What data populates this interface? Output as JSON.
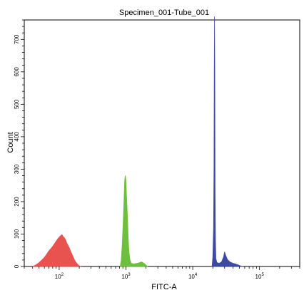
{
  "chart_data": {
    "type": "histogram",
    "title": "Specimen_001-Tube_001",
    "xlabel": "FITC-A",
    "ylabel": "Count",
    "x_scale": "log",
    "xlim": [
      30,
      400000
    ],
    "ylim": [
      0,
      760
    ],
    "x_ticks": [
      {
        "value": 100,
        "base": "10",
        "exp": "2"
      },
      {
        "value": 1000,
        "base": "10",
        "exp": "3"
      },
      {
        "value": 10000,
        "base": "10",
        "exp": "4"
      },
      {
        "value": 100000,
        "base": "10",
        "exp": "5"
      }
    ],
    "y_ticks": [
      {
        "value": 0,
        "label": "0"
      },
      {
        "value": 100,
        "label": "100"
      },
      {
        "value": 200,
        "label": "200"
      },
      {
        "value": 300,
        "label": "300"
      },
      {
        "value": 400,
        "label": "400"
      },
      {
        "value": 500,
        "label": "500"
      },
      {
        "value": 600,
        "label": "600"
      },
      {
        "value": 700,
        "label": "700"
      }
    ],
    "series": [
      {
        "color": "#e8534f",
        "points": [
          [
            40,
            0
          ],
          [
            45,
            5
          ],
          [
            50,
            12
          ],
          [
            55,
            20
          ],
          [
            60,
            28
          ],
          [
            65,
            38
          ],
          [
            70,
            48
          ],
          [
            75,
            55
          ],
          [
            80,
            62
          ],
          [
            85,
            70
          ],
          [
            90,
            78
          ],
          [
            95,
            85
          ],
          [
            100,
            90
          ],
          [
            105,
            95
          ],
          [
            110,
            98
          ],
          [
            115,
            92
          ],
          [
            120,
            88
          ],
          [
            125,
            82
          ],
          [
            130,
            72
          ],
          [
            140,
            60
          ],
          [
            150,
            45
          ],
          [
            160,
            32
          ],
          [
            170,
            20
          ],
          [
            180,
            12
          ],
          [
            190,
            6
          ],
          [
            200,
            2
          ],
          [
            210,
            0
          ]
        ]
      },
      {
        "color": "#6fbf3f",
        "points": [
          [
            820,
            0
          ],
          [
            850,
            20
          ],
          [
            880,
            70
          ],
          [
            910,
            140
          ],
          [
            940,
            220
          ],
          [
            960,
            270
          ],
          [
            980,
            280
          ],
          [
            1000,
            265
          ],
          [
            1020,
            220
          ],
          [
            1050,
            160
          ],
          [
            1080,
            90
          ],
          [
            1110,
            45
          ],
          [
            1150,
            20
          ],
          [
            1200,
            10
          ],
          [
            1300,
            8
          ],
          [
            1500,
            10
          ],
          [
            1700,
            14
          ],
          [
            1800,
            12
          ],
          [
            1900,
            8
          ],
          [
            2000,
            4
          ],
          [
            2100,
            0
          ]
        ]
      },
      {
        "color": "#3c4aa2",
        "points": [
          [
            19500,
            0
          ],
          [
            20000,
            30
          ],
          [
            20500,
            120
          ],
          [
            20800,
            300
          ],
          [
            21000,
            610
          ],
          [
            21200,
            770
          ],
          [
            21400,
            600
          ],
          [
            21600,
            250
          ],
          [
            21900,
            80
          ],
          [
            22200,
            25
          ],
          [
            23000,
            12
          ],
          [
            25000,
            10
          ],
          [
            27000,
            14
          ],
          [
            29000,
            30
          ],
          [
            30000,
            45
          ],
          [
            31000,
            35
          ],
          [
            33000,
            22
          ],
          [
            36000,
            14
          ],
          [
            40000,
            10
          ],
          [
            45000,
            7
          ],
          [
            50000,
            3
          ],
          [
            55000,
            0
          ]
        ]
      }
    ]
  }
}
